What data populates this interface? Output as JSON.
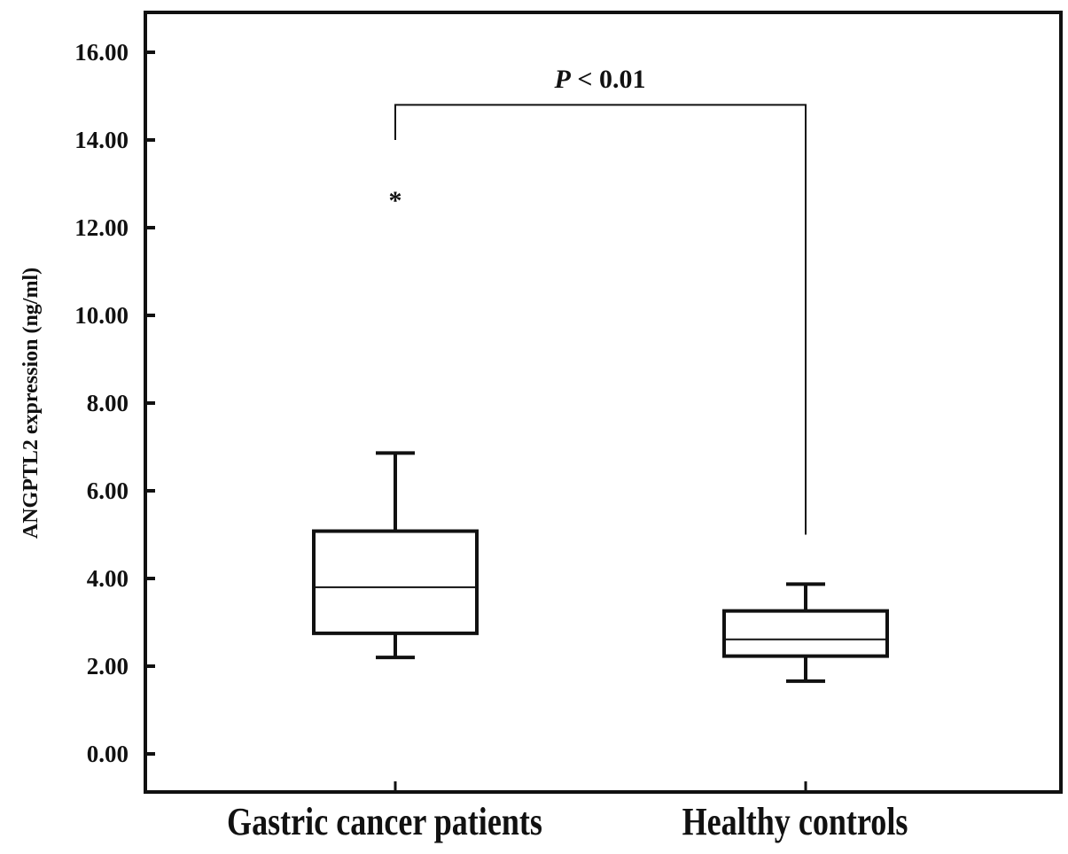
{
  "chart_data": {
    "type": "box",
    "title": "",
    "xlabel": "",
    "ylabel": "ANGPTL2 expression (ng/ml)",
    "ylim": [
      0,
      16
    ],
    "yticks": [
      "0.00",
      "2.00",
      "4.00",
      "6.00",
      "8.00",
      "10.00",
      "12.00",
      "14.00",
      "16.00"
    ],
    "categories": [
      "Gastric cancer patients",
      "Healthy controls"
    ],
    "boxes": [
      {
        "name": "Gastric cancer patients",
        "whisker_low": 2.2,
        "q1": 2.75,
        "median": 3.8,
        "q3": 5.08,
        "whisker_high": 6.86,
        "outliers": [
          12.75
        ]
      },
      {
        "name": "Healthy controls",
        "whisker_low": 1.66,
        "q1": 2.23,
        "median": 2.61,
        "q3": 3.26,
        "whisker_high": 3.87,
        "outliers": []
      }
    ],
    "outlier_marker": "*",
    "annotation": {
      "p_symbol": "P",
      "text": " < 0.01",
      "bracket_top": 14.8,
      "left_end": 14.0,
      "right_end": 5.0
    },
    "grid": false
  }
}
